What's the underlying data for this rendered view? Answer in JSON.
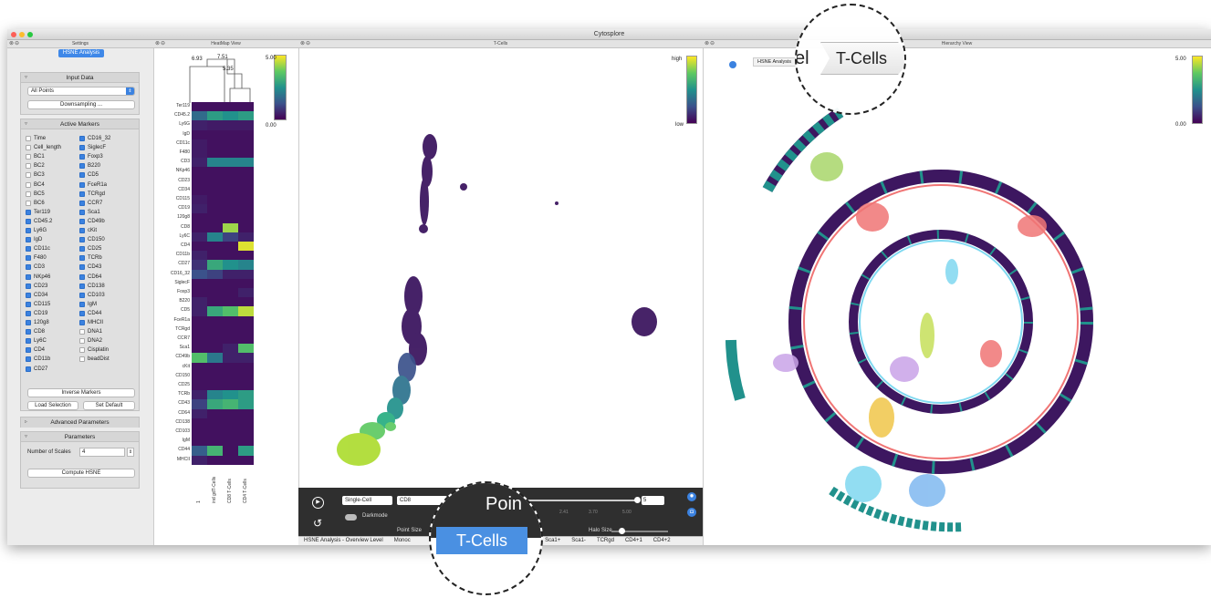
{
  "app": {
    "title": "Cytosplore"
  },
  "settings": {
    "header": "Settings",
    "analysis_label": "HSNE Analysis",
    "input_data": {
      "title": "Input Data",
      "dropdown_value": "All Points",
      "downsampling_label": "Downsampling ..."
    },
    "active_markers": {
      "title": "Active Markers",
      "left": [
        {
          "n": "Time",
          "c": false
        },
        {
          "n": "Cell_length",
          "c": false
        },
        {
          "n": "BC1",
          "c": false
        },
        {
          "n": "BC2",
          "c": false
        },
        {
          "n": "BC3",
          "c": false
        },
        {
          "n": "BC4",
          "c": false
        },
        {
          "n": "BC5",
          "c": false
        },
        {
          "n": "BC6",
          "c": false
        },
        {
          "n": "Ter119",
          "c": true
        },
        {
          "n": "CD45.2",
          "c": true
        },
        {
          "n": "Ly6G",
          "c": true
        },
        {
          "n": "IgD",
          "c": true
        },
        {
          "n": "CD11c",
          "c": true
        },
        {
          "n": "F480",
          "c": true
        },
        {
          "n": "CD3",
          "c": true
        },
        {
          "n": "NKp46",
          "c": true
        },
        {
          "n": "CD23",
          "c": true
        },
        {
          "n": "CD34",
          "c": true
        },
        {
          "n": "CD115",
          "c": true
        },
        {
          "n": "CD19",
          "c": true
        },
        {
          "n": "120g8",
          "c": true
        },
        {
          "n": "CD8",
          "c": true
        },
        {
          "n": "Ly6C",
          "c": true
        },
        {
          "n": "CD4",
          "c": true
        },
        {
          "n": "CD11b",
          "c": true
        },
        {
          "n": "CD27",
          "c": true
        }
      ],
      "right": [
        {
          "n": "CD16_32",
          "c": true
        },
        {
          "n": "SiglecF",
          "c": true
        },
        {
          "n": "Foxp3",
          "c": true
        },
        {
          "n": "B220",
          "c": true
        },
        {
          "n": "CD5",
          "c": true
        },
        {
          "n": "FceR1a",
          "c": true
        },
        {
          "n": "TCRgd",
          "c": true
        },
        {
          "n": "CCR7",
          "c": true
        },
        {
          "n": "Sca1",
          "c": true
        },
        {
          "n": "CD49b",
          "c": true
        },
        {
          "n": "cKit",
          "c": true
        },
        {
          "n": "CD150",
          "c": true
        },
        {
          "n": "CD25",
          "c": true
        },
        {
          "n": "TCRb",
          "c": true
        },
        {
          "n": "CD43",
          "c": true
        },
        {
          "n": "CD64",
          "c": true
        },
        {
          "n": "CD138",
          "c": true
        },
        {
          "n": "CD103",
          "c": true
        },
        {
          "n": "IgM",
          "c": true
        },
        {
          "n": "CD44",
          "c": true
        },
        {
          "n": "MHCII",
          "c": true
        },
        {
          "n": "DNA1",
          "c": false
        },
        {
          "n": "DNA2",
          "c": false
        },
        {
          "n": "Cisplatin",
          "c": false
        },
        {
          "n": "beadDist",
          "c": false
        }
      ],
      "inverse_label": "Inverse Markers",
      "load_label": "Load Selection",
      "default_label": "Set Default"
    },
    "advanced": {
      "title": "Advanced Parameters"
    },
    "parameters": {
      "title": "Parameters",
      "scales_label": "Number of Scales",
      "scales_value": "4",
      "compute_label": "Compute HSNE"
    }
  },
  "heatmap": {
    "header": "HeatMap View",
    "rows": [
      "Ter119",
      "CD45.2",
      "Ly6G",
      "IgD",
      "CD11c",
      "F480",
      "CD3",
      "NKp46",
      "CD23",
      "CD34",
      "CD115",
      "CD19",
      "120g8",
      "CD8",
      "Ly6C",
      "CD4",
      "CD11b",
      "CD27",
      "CD16_32",
      "SiglecF",
      "Foxp3",
      "B220",
      "CD5",
      "FceR1a",
      "TCRgd",
      "CCR7",
      "Sca1",
      "CD49b",
      "cKit",
      "CD150",
      "CD25",
      "TCRb",
      "CD43",
      "CD64",
      "CD138",
      "CD103",
      "IgM",
      "CD44",
      "MHCII"
    ],
    "columns": [
      "1",
      "ind gdT-Cells",
      "CD8 T-Cells",
      "CD4 T-Cells"
    ],
    "values": [
      [
        0.05,
        0.05,
        0.05,
        0.05
      ],
      [
        0.35,
        0.55,
        0.5,
        0.55
      ],
      [
        0.1,
        0.08,
        0.08,
        0.08
      ],
      [
        0.05,
        0.05,
        0.05,
        0.05
      ],
      [
        0.08,
        0.05,
        0.05,
        0.05
      ],
      [
        0.08,
        0.05,
        0.05,
        0.05
      ],
      [
        0.1,
        0.45,
        0.45,
        0.45
      ],
      [
        0.05,
        0.05,
        0.05,
        0.05
      ],
      [
        0.05,
        0.05,
        0.05,
        0.05
      ],
      [
        0.05,
        0.05,
        0.05,
        0.05
      ],
      [
        0.08,
        0.05,
        0.05,
        0.05
      ],
      [
        0.1,
        0.05,
        0.05,
        0.05
      ],
      [
        0.05,
        0.05,
        0.05,
        0.05
      ],
      [
        0.05,
        0.05,
        0.85,
        0.05
      ],
      [
        0.1,
        0.45,
        0.2,
        0.1
      ],
      [
        0.05,
        0.05,
        0.05,
        0.95
      ],
      [
        0.1,
        0.05,
        0.05,
        0.05
      ],
      [
        0.15,
        0.6,
        0.5,
        0.45
      ],
      [
        0.25,
        0.2,
        0.1,
        0.1
      ],
      [
        0.05,
        0.05,
        0.05,
        0.05
      ],
      [
        0.05,
        0.05,
        0.05,
        0.1
      ],
      [
        0.1,
        0.05,
        0.05,
        0.05
      ],
      [
        0.1,
        0.6,
        0.7,
        0.9
      ],
      [
        0.05,
        0.05,
        0.05,
        0.05
      ],
      [
        0.05,
        0.05,
        0.05,
        0.05
      ],
      [
        0.05,
        0.05,
        0.05,
        0.05
      ],
      [
        0.05,
        0.05,
        0.1,
        0.7
      ],
      [
        0.7,
        0.4,
        0.1,
        0.1
      ],
      [
        0.05,
        0.05,
        0.05,
        0.05
      ],
      [
        0.05,
        0.05,
        0.05,
        0.05
      ],
      [
        0.05,
        0.05,
        0.05,
        0.05
      ],
      [
        0.1,
        0.45,
        0.5,
        0.55
      ],
      [
        0.2,
        0.6,
        0.65,
        0.55
      ],
      [
        0.1,
        0.05,
        0.05,
        0.05
      ],
      [
        0.05,
        0.05,
        0.05,
        0.05
      ],
      [
        0.05,
        0.05,
        0.05,
        0.05
      ],
      [
        0.05,
        0.05,
        0.05,
        0.05
      ],
      [
        0.3,
        0.65,
        0.05,
        0.55
      ],
      [
        0.1,
        0.05,
        0.05,
        0.05
      ]
    ],
    "dendro": [
      "6.93",
      "7.51",
      "5.35"
    ],
    "scale_max": "5.00",
    "scale_min": "0.00"
  },
  "tcells": {
    "header": "T-Cells",
    "scale_high": "high",
    "scale_low": "low",
    "controls": {
      "mode": "Single-Cell",
      "marker": "CD8",
      "darkmode": "Darkmode",
      "point_size": "Point Size",
      "halo_size": "Halo Size",
      "zoom_text": "Poin",
      "slider_value": "5",
      "ticks": [
        "2.41",
        "3.70",
        "5.00"
      ]
    },
    "tabs": [
      "HSNE Analysis - Overview Level",
      "Monoc",
      "e",
      "Sca1+",
      "Sca1-",
      "TCRgd",
      "CD4+1",
      "CD4+2"
    ],
    "lens_label": "T-Cells"
  },
  "hierarchy": {
    "header": "Hierarchy View",
    "breadcrumb_root": "HSNE Analysis",
    "breadcrumb_prefix": "el",
    "breadcrumb_current": "T-Cells",
    "scale_max": "5.00",
    "scale_min": "0.00"
  }
}
